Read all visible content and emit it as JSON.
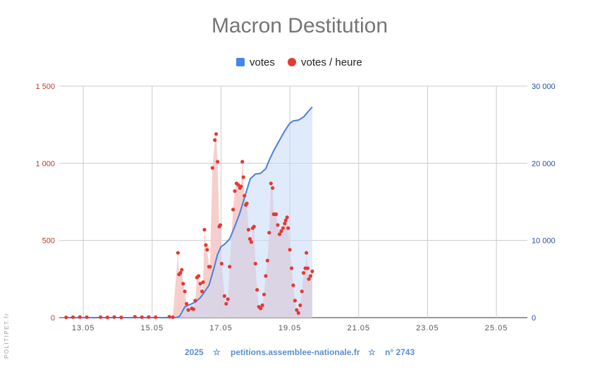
{
  "chart_data": {
    "type": "line",
    "title": "Macron Destitution",
    "legend_position": "top",
    "grid": true,
    "legend": [
      {
        "name": "votes",
        "color": "#4285f4",
        "marker": "square"
      },
      {
        "name": "votes / heure",
        "color": "#e53935",
        "marker": "circle"
      }
    ],
    "x_ticks": [
      "13.05",
      "15.05",
      "17.05",
      "19.05",
      "21.05",
      "23.05",
      "25.05"
    ],
    "x_tick_days": [
      13,
      15,
      17,
      19,
      21,
      23,
      25
    ],
    "xlim_days": [
      12.3,
      25.9
    ],
    "y_left_ticks": [
      "0",
      "500",
      "1 000",
      "1 500"
    ],
    "y_left_values": [
      0,
      500,
      1000,
      1500
    ],
    "ylim_left": [
      0,
      1500
    ],
    "y_right_ticks": [
      "0",
      "10 000",
      "20 000",
      "30 000"
    ],
    "y_right_values": [
      0,
      10000,
      20000,
      30000
    ],
    "ylim_right": [
      0,
      30000
    ],
    "series": [
      {
        "name": "votes",
        "axis": "right",
        "color": "#4a7fe0",
        "fill": "#c5d9f8",
        "x_days": [
          12.5,
          15.7,
          15.8,
          15.95,
          16.1,
          16.25,
          16.4,
          16.5,
          16.65,
          16.8,
          16.9,
          17.0,
          17.1,
          17.25,
          17.4,
          17.55,
          17.7,
          17.85,
          18.0,
          18.15,
          18.3,
          18.4,
          18.55,
          18.7,
          18.85,
          19.0,
          19.1,
          19.25,
          19.4,
          19.55,
          19.65
        ],
        "values": [
          0,
          0,
          200,
          1400,
          1700,
          2000,
          2600,
          3200,
          4200,
          6500,
          8200,
          9200,
          9500,
          10200,
          11800,
          13600,
          15800,
          18000,
          18600,
          18700,
          19300,
          20400,
          21800,
          23000,
          24200,
          25200,
          25500,
          25600,
          26000,
          26800,
          27300
        ]
      },
      {
        "name": "votes / heure",
        "axis": "left",
        "color": "#e53935",
        "fill": "#f4c7c3",
        "points": [
          [
            12.5,
            2
          ],
          [
            12.7,
            3
          ],
          [
            12.9,
            4
          ],
          [
            13.1,
            3
          ],
          [
            13.5,
            3
          ],
          [
            13.7,
            2
          ],
          [
            13.9,
            4
          ],
          [
            14.1,
            2
          ],
          [
            14.5,
            6
          ],
          [
            14.7,
            3
          ],
          [
            14.9,
            4
          ],
          [
            15.1,
            3
          ],
          [
            15.5,
            6
          ],
          [
            15.6,
            3
          ],
          [
            15.75,
            420
          ],
          [
            15.78,
            280
          ],
          [
            15.82,
            290
          ],
          [
            15.86,
            310
          ],
          [
            15.9,
            220
          ],
          [
            15.95,
            170
          ],
          [
            16.0,
            90
          ],
          [
            16.05,
            50
          ],
          [
            16.15,
            60
          ],
          [
            16.2,
            55
          ],
          [
            16.25,
            110
          ],
          [
            16.3,
            260
          ],
          [
            16.35,
            270
          ],
          [
            16.4,
            220
          ],
          [
            16.45,
            170
          ],
          [
            16.48,
            230
          ],
          [
            16.52,
            570
          ],
          [
            16.56,
            470
          ],
          [
            16.6,
            440
          ],
          [
            16.65,
            330
          ],
          [
            16.68,
            330
          ],
          [
            16.75,
            970
          ],
          [
            16.82,
            1150
          ],
          [
            16.86,
            1190
          ],
          [
            16.9,
            1010
          ],
          [
            16.95,
            590
          ],
          [
            16.98,
            600
          ],
          [
            17.02,
            350
          ],
          [
            17.1,
            140
          ],
          [
            17.15,
            90
          ],
          [
            17.2,
            120
          ],
          [
            17.25,
            330
          ],
          [
            17.35,
            700
          ],
          [
            17.4,
            820
          ],
          [
            17.45,
            870
          ],
          [
            17.5,
            860
          ],
          [
            17.55,
            840
          ],
          [
            17.58,
            850
          ],
          [
            17.62,
            1010
          ],
          [
            17.65,
            910
          ],
          [
            17.68,
            790
          ],
          [
            17.72,
            730
          ],
          [
            17.75,
            740
          ],
          [
            17.8,
            570
          ],
          [
            17.84,
            510
          ],
          [
            17.88,
            490
          ],
          [
            17.92,
            580
          ],
          [
            17.96,
            590
          ],
          [
            18.0,
            350
          ],
          [
            18.05,
            180
          ],
          [
            18.1,
            70
          ],
          [
            18.15,
            60
          ],
          [
            18.2,
            80
          ],
          [
            18.25,
            150
          ],
          [
            18.3,
            270
          ],
          [
            18.35,
            370
          ],
          [
            18.4,
            550
          ],
          [
            18.45,
            870
          ],
          [
            18.5,
            840
          ],
          [
            18.53,
            670
          ],
          [
            18.57,
            670
          ],
          [
            18.6,
            670
          ],
          [
            18.65,
            600
          ],
          [
            18.7,
            540
          ],
          [
            18.75,
            560
          ],
          [
            18.8,
            580
          ],
          [
            18.85,
            610
          ],
          [
            18.88,
            630
          ],
          [
            18.92,
            650
          ],
          [
            18.95,
            580
          ],
          [
            19.0,
            440
          ],
          [
            19.05,
            320
          ],
          [
            19.1,
            210
          ],
          [
            19.15,
            110
          ],
          [
            19.2,
            50
          ],
          [
            19.25,
            30
          ],
          [
            19.3,
            80
          ],
          [
            19.35,
            170
          ],
          [
            19.4,
            290
          ],
          [
            19.45,
            320
          ],
          [
            19.48,
            420
          ],
          [
            19.52,
            320
          ],
          [
            19.55,
            250
          ],
          [
            19.6,
            270
          ],
          [
            19.65,
            300
          ]
        ]
      }
    ]
  },
  "footer": {
    "year": "2025",
    "star": "☆",
    "site": "petitions.assemblee-nationale.fr",
    "number": "n° 2743"
  },
  "watermark": "POLITIPET.fr"
}
